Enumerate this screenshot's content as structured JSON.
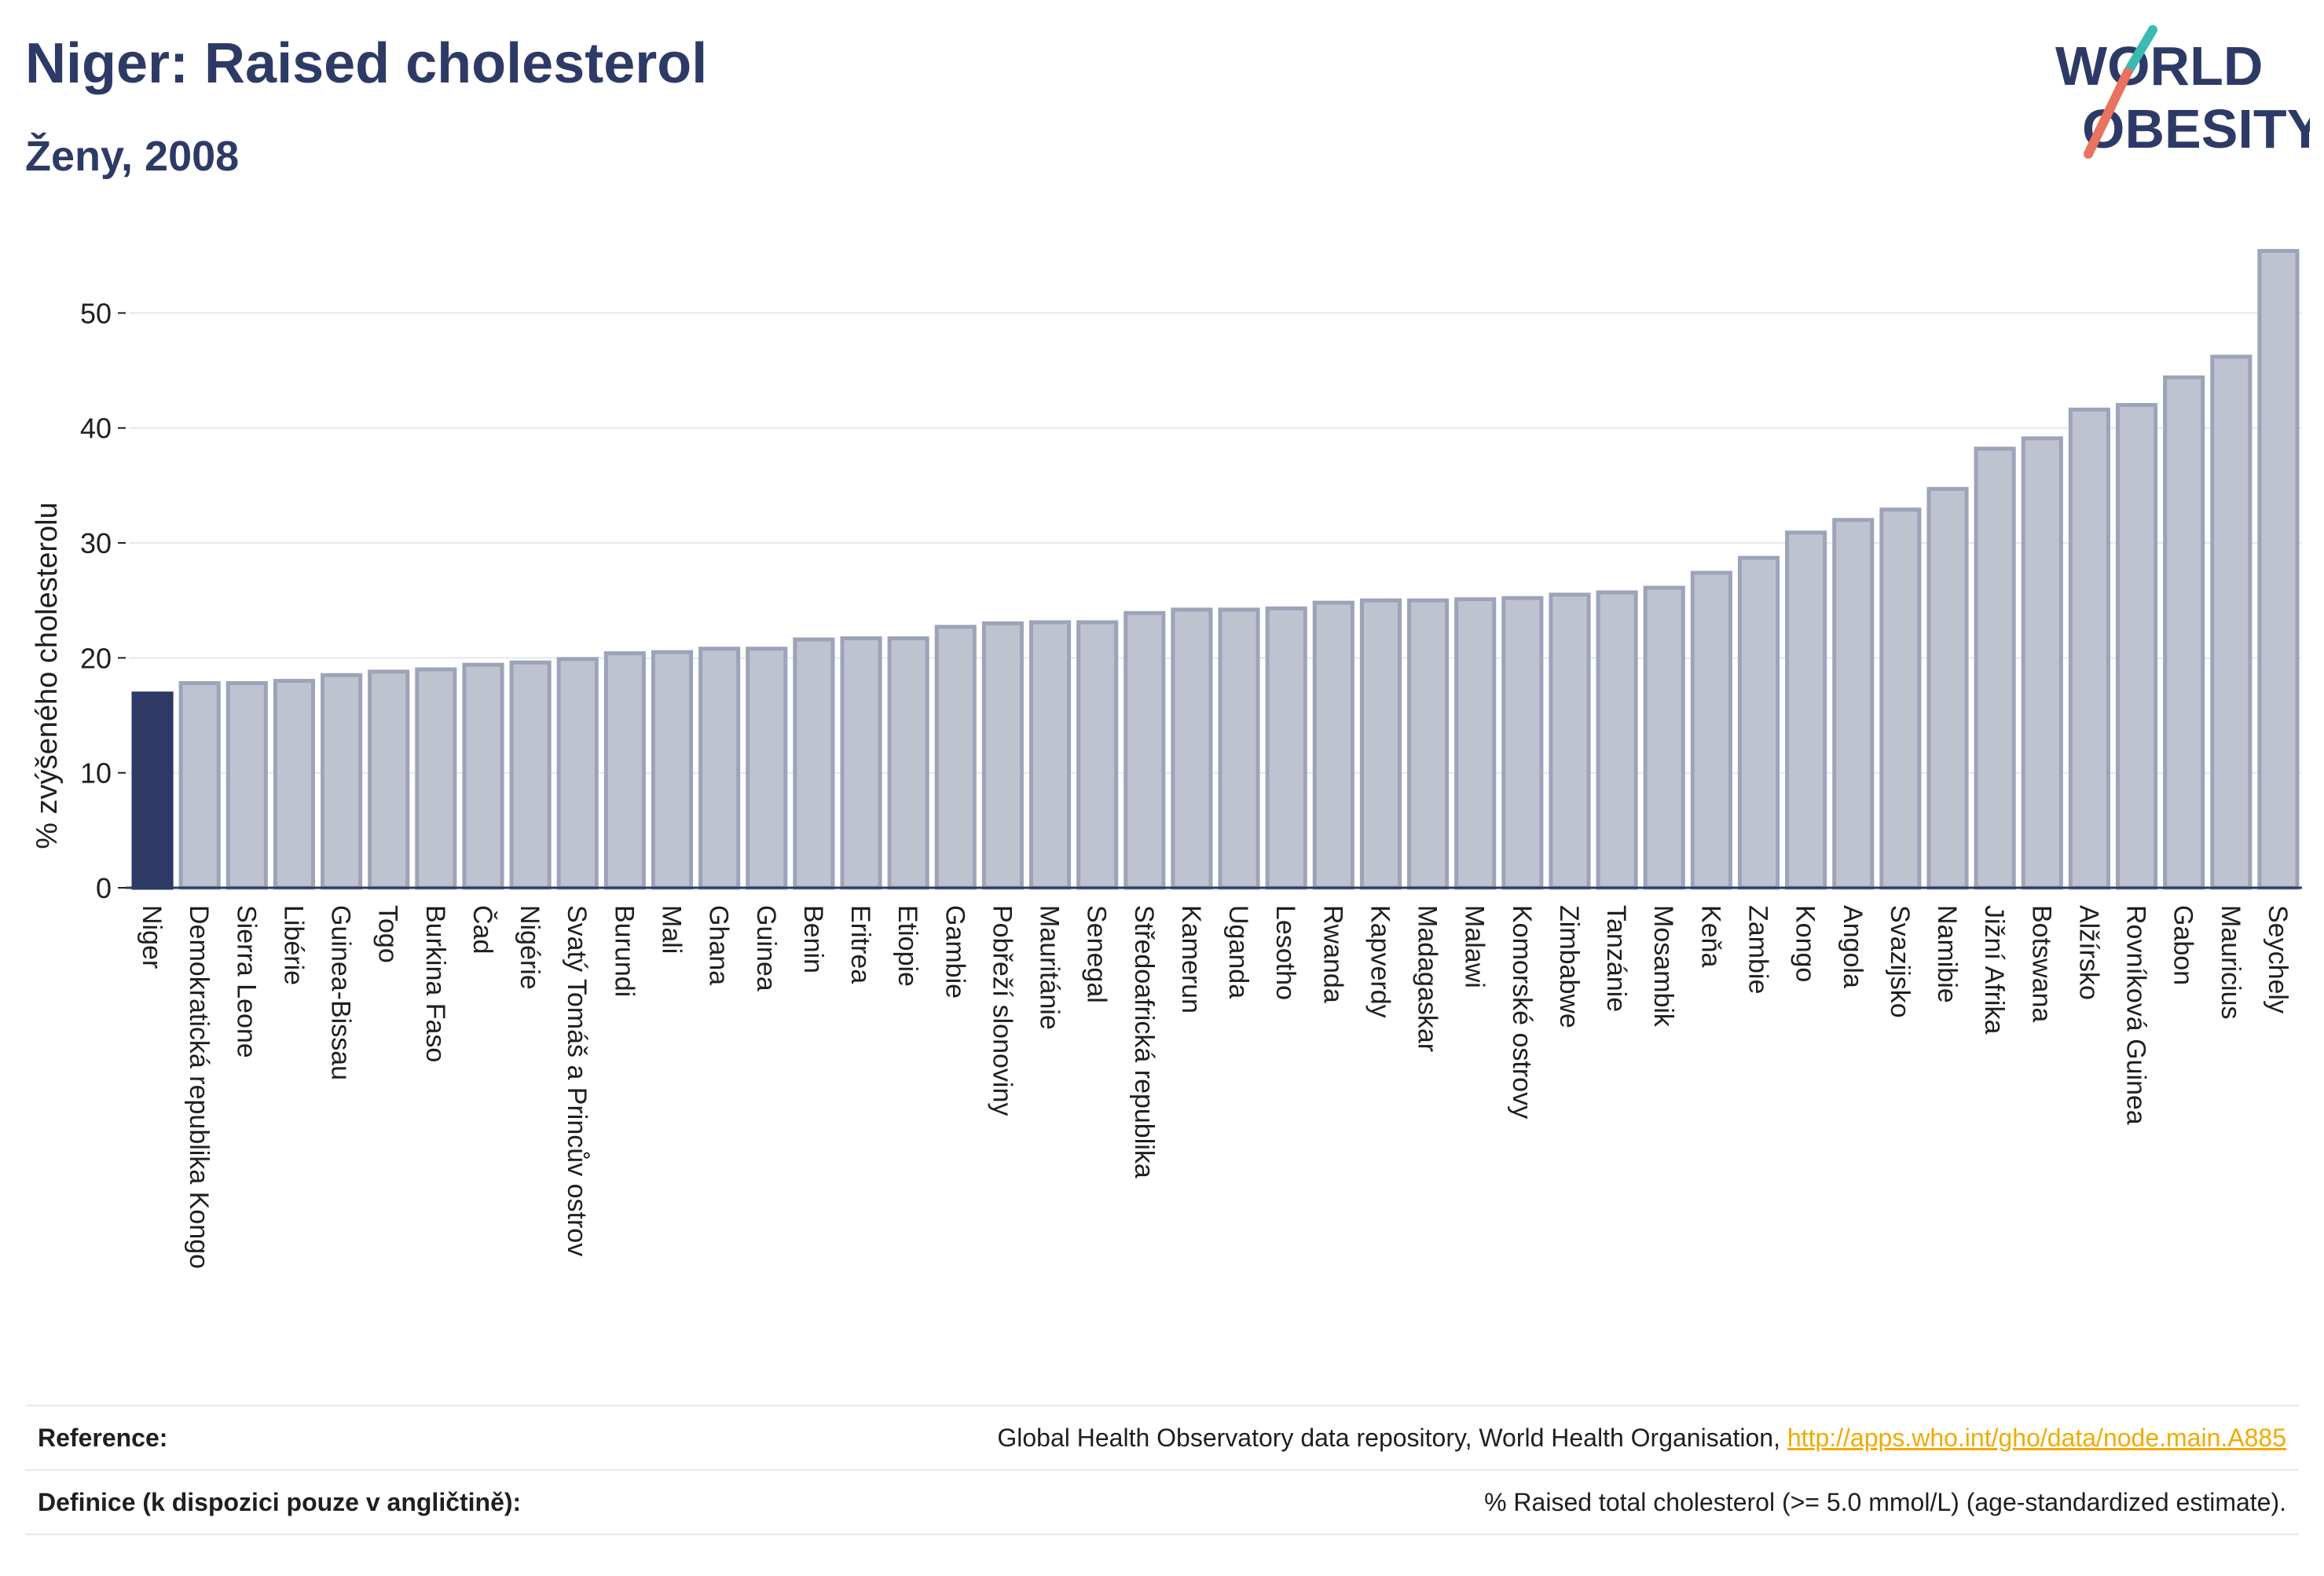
{
  "header": {
    "title": "Niger: Raised cholesterol",
    "subtitle": "Ženy, 2008"
  },
  "logo": {
    "line1": "WORLD",
    "line2": "OBESITY",
    "colors": {
      "text": "#2e3a66",
      "slash_teal": "#3bb9b3",
      "slash_coral": "#e8735f"
    }
  },
  "chart_data": {
    "type": "bar",
    "ylabel": "% zvýšeného cholesterolu",
    "xlabel": "",
    "ylim": [
      0,
      57
    ],
    "yticks": [
      0,
      10,
      20,
      30,
      40,
      50
    ],
    "grid": true,
    "highlight_category": "Niger",
    "colors": {
      "highlight": "#2e3a66",
      "bar": "#bfc3d0",
      "bar_outline": "#9da3b8",
      "grid": "#e6e8ee",
      "axis": "#2e3a66"
    },
    "categories": [
      "Niger",
      "Demokratická republika Kongo",
      "Sierra Leone",
      "Libérie",
      "Guinea-Bissau",
      "Togo",
      "Burkina Faso",
      "Čad",
      "Nigérie",
      "Svatý Tomáš a Princův ostrov",
      "Burundi",
      "Mali",
      "Ghana",
      "Guinea",
      "Benin",
      "Eritrea",
      "Etiopie",
      "Gambie",
      "Pobřeží slonoviny",
      "Mauritánie",
      "Senegal",
      "Středoafrická republika",
      "Kamerun",
      "Uganda",
      "Lesotho",
      "Rwanda",
      "Kapverdy",
      "Madagaskar",
      "Malawi",
      "Komorské ostrovy",
      "Zimbabwe",
      "Tanzánie",
      "Mosambik",
      "Keňa",
      "Zambie",
      "Kongo",
      "Angola",
      "Svazijsko",
      "Namibie",
      "Jižní Afrika",
      "Botswana",
      "Alžírsko",
      "Rovníková Guinea",
      "Gabon",
      "Mauricius",
      "Seychely"
    ],
    "values": [
      16.9,
      17.8,
      17.8,
      18.0,
      18.5,
      18.8,
      19.0,
      19.4,
      19.6,
      19.9,
      20.4,
      20.5,
      20.8,
      20.8,
      21.6,
      21.7,
      21.7,
      22.7,
      23.0,
      23.1,
      23.1,
      23.9,
      24.2,
      24.2,
      24.3,
      24.8,
      25.0,
      25.0,
      25.1,
      25.2,
      25.5,
      25.7,
      26.1,
      27.4,
      28.7,
      30.9,
      32.0,
      32.9,
      34.7,
      38.2,
      39.1,
      41.6,
      42.0,
      44.4,
      46.2,
      55.4
    ]
  },
  "references": {
    "reference_label": "Reference:",
    "reference_text": "Global Health Observatory data repository, World Health Organisation, ",
    "reference_link": "http://apps.who.int/gho/data/node.main.A885",
    "definition_label": "Definice (k dispozici pouze v angličtině):",
    "definition_text": "% Raised total cholesterol (>= 5.0 mmol/L) (age-standardized estimate)."
  }
}
